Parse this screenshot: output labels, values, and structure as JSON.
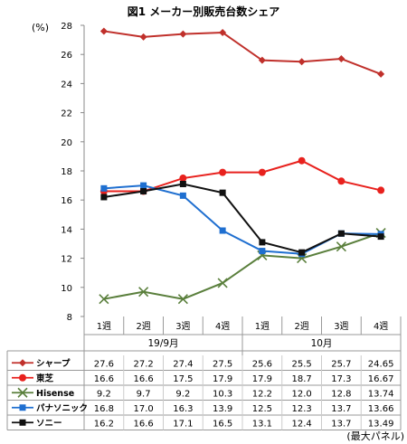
{
  "chart_data": {
    "type": "line",
    "title": "図1 メーカー別販売台数シェア",
    "ylabel": "(%)",
    "ylim": [
      8,
      28
    ],
    "yticks": [
      8,
      10,
      12,
      14,
      16,
      18,
      20,
      22,
      24,
      26,
      28
    ],
    "grid": false,
    "categories": [
      "1週",
      "2週",
      "3週",
      "4週",
      "1週",
      "2週",
      "3週",
      "4週"
    ],
    "month_groups": [
      {
        "label": "19/9月",
        "span": 4
      },
      {
        "label": "10月",
        "span": 4
      }
    ],
    "series": [
      {
        "name": "シャープ",
        "color": "#c0302b",
        "marker": "diamond",
        "values": [
          27.6,
          27.2,
          27.4,
          27.5,
          25.6,
          25.5,
          25.7,
          24.65
        ],
        "labels": [
          "27.6",
          "27.2",
          "27.4",
          "27.5",
          "25.6",
          "25.5",
          "25.7",
          "24.65"
        ]
      },
      {
        "name": "東芝",
        "color": "#e8211d",
        "marker": "circle",
        "values": [
          16.6,
          16.6,
          17.5,
          17.9,
          17.9,
          18.7,
          17.3,
          16.67
        ],
        "labels": [
          "16.6",
          "16.6",
          "17.5",
          "17.9",
          "17.9",
          "18.7",
          "17.3",
          "16.67"
        ]
      },
      {
        "name": "Hisense",
        "color": "#5a7f3c",
        "marker": "x",
        "values": [
          9.2,
          9.7,
          9.2,
          10.3,
          12.2,
          12.0,
          12.8,
          13.74
        ],
        "labels": [
          "9.2",
          "9.7",
          "9.2",
          "10.3",
          "12.2",
          "12.0",
          "12.8",
          "13.74"
        ]
      },
      {
        "name": "パナソニック",
        "color": "#1f6fd0",
        "marker": "square",
        "values": [
          16.8,
          17.0,
          16.3,
          13.9,
          12.5,
          12.3,
          13.7,
          13.66
        ],
        "labels": [
          "16.8",
          "17.0",
          "16.3",
          "13.9",
          "12.5",
          "12.3",
          "13.7",
          "13.66"
        ]
      },
      {
        "name": "ソニー",
        "color": "#111111",
        "marker": "square",
        "values": [
          16.2,
          16.6,
          17.1,
          16.5,
          13.1,
          12.4,
          13.7,
          13.49
        ],
        "labels": [
          "16.2",
          "16.6",
          "17.1",
          "16.5",
          "13.1",
          "12.4",
          "13.7",
          "13.49"
        ]
      }
    ],
    "note": "(最大パネル)"
  }
}
